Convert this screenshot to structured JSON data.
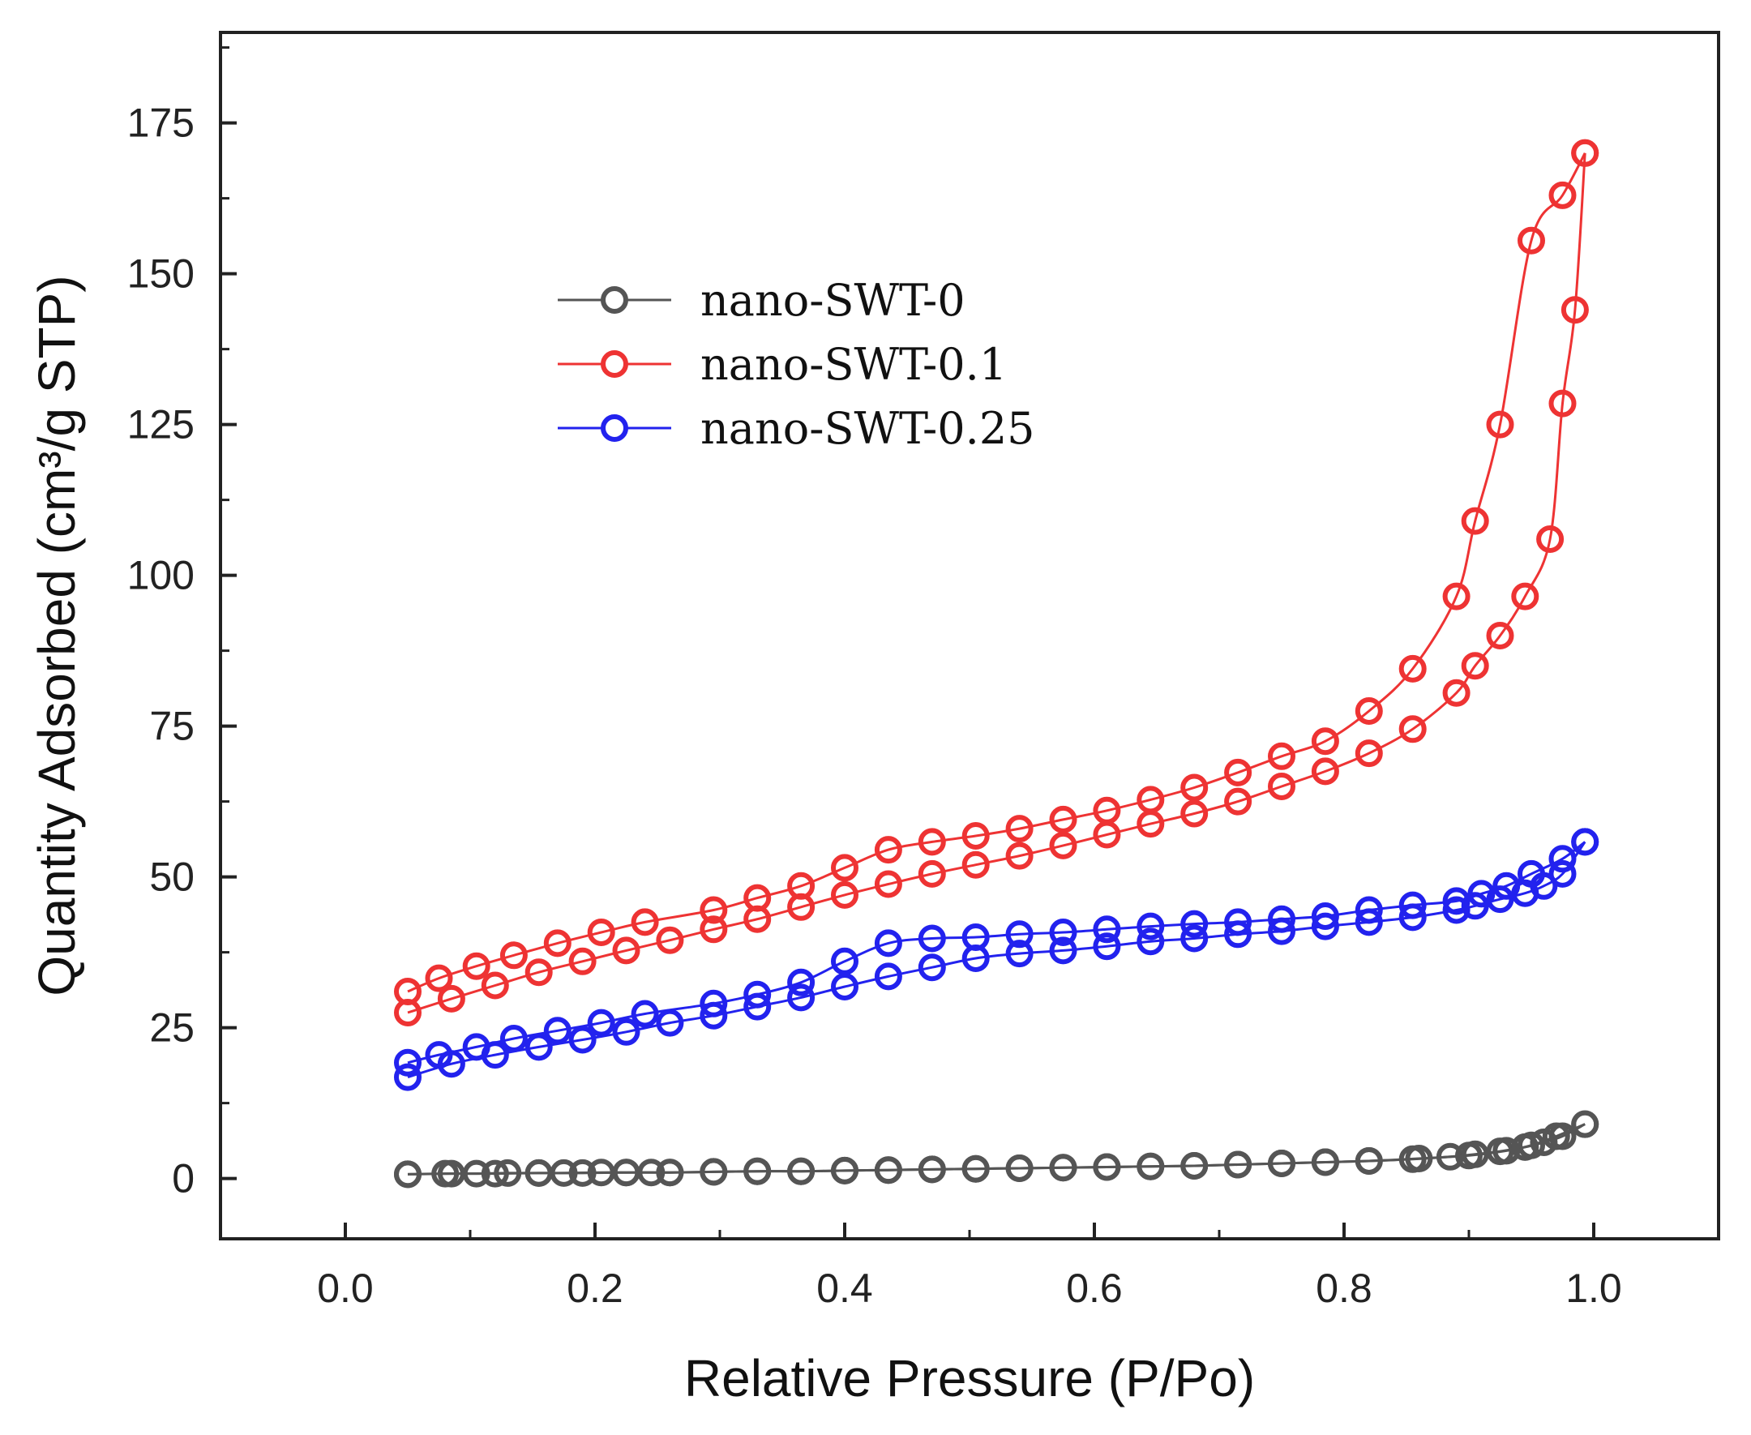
{
  "chart_data": {
    "type": "scatter",
    "title": "",
    "xlabel": "Relative Pressure (P/Po)",
    "ylabel": "Quantity Adsorbed (cm³/g STP)",
    "xlim": [
      -0.1,
      1.1
    ],
    "ylim": [
      -10,
      190
    ],
    "xticks": [
      0.0,
      0.2,
      0.4,
      0.6,
      0.8,
      1.0
    ],
    "xtick_labels": [
      "0.0",
      "0.2",
      "0.4",
      "0.6",
      "0.8",
      "1.0"
    ],
    "yticks": [
      0,
      25,
      50,
      75,
      100,
      125,
      150,
      175
    ],
    "ytick_labels": [
      "0",
      "25",
      "50",
      "75",
      "100",
      "125",
      "150",
      "175"
    ],
    "grid": false,
    "legend_position": "upper-left",
    "marker": "open-circle",
    "series": [
      {
        "name": "nano-SWT-0",
        "color": "#555555",
        "adsorption": {
          "x": [
            0.05,
            0.08,
            0.105,
            0.13,
            0.155,
            0.175,
            0.205,
            0.225,
            0.245,
            0.26,
            0.295,
            0.33,
            0.365,
            0.4,
            0.435,
            0.47,
            0.505,
            0.54,
            0.575,
            0.61,
            0.645,
            0.68,
            0.715,
            0.75,
            0.785,
            0.82,
            0.855,
            0.885,
            0.905,
            0.925,
            0.945,
            0.96,
            0.975,
            0.993
          ],
          "y": [
            0.7,
            0.8,
            0.8,
            0.9,
            0.9,
            0.9,
            1.0,
            1.0,
            1.0,
            1.0,
            1.1,
            1.2,
            1.2,
            1.3,
            1.4,
            1.5,
            1.6,
            1.7,
            1.8,
            1.9,
            2.0,
            2.1,
            2.3,
            2.5,
            2.7,
            2.9,
            3.2,
            3.6,
            4.0,
            4.5,
            5.2,
            6.0,
            7.0,
            9.0
          ]
        },
        "desorption": {
          "x": [
            0.993,
            0.97,
            0.95,
            0.93,
            0.9,
            0.86,
            0.82,
            0.785,
            0.75,
            0.715,
            0.68,
            0.645,
            0.61,
            0.575,
            0.54,
            0.505,
            0.47,
            0.435,
            0.4,
            0.365,
            0.33,
            0.295,
            0.26,
            0.225,
            0.19,
            0.155,
            0.12,
            0.085,
            0.05
          ],
          "y": [
            9.0,
            7.0,
            5.5,
            4.6,
            3.8,
            3.3,
            2.9,
            2.7,
            2.5,
            2.3,
            2.1,
            2.0,
            1.9,
            1.8,
            1.7,
            1.6,
            1.5,
            1.4,
            1.3,
            1.2,
            1.2,
            1.1,
            1.0,
            1.0,
            0.9,
            0.9,
            0.8,
            0.8,
            0.7
          ]
        }
      },
      {
        "name": "nano-SWT-0.1",
        "color": "#ee3333",
        "adsorption": {
          "x": [
            0.05,
            0.085,
            0.12,
            0.155,
            0.19,
            0.225,
            0.26,
            0.295,
            0.33,
            0.365,
            0.4,
            0.435,
            0.47,
            0.505,
            0.54,
            0.575,
            0.61,
            0.645,
            0.68,
            0.715,
            0.75,
            0.785,
            0.82,
            0.855,
            0.89,
            0.905,
            0.925,
            0.945,
            0.965,
            0.975,
            0.985,
            0.993
          ],
          "y": [
            27.5,
            29.8,
            32.0,
            34.2,
            36.0,
            37.8,
            39.5,
            41.3,
            43.0,
            45.0,
            47.0,
            48.8,
            50.5,
            52.0,
            53.5,
            55.2,
            57.0,
            58.8,
            60.5,
            62.5,
            65.0,
            67.5,
            70.5,
            74.5,
            80.5,
            85.0,
            90.0,
            96.5,
            106.0,
            128.5,
            144.0,
            170.0
          ]
        },
        "desorption": {
          "x": [
            0.993,
            0.975,
            0.95,
            0.925,
            0.905,
            0.89,
            0.855,
            0.82,
            0.785,
            0.75,
            0.715,
            0.68,
            0.645,
            0.61,
            0.575,
            0.54,
            0.505,
            0.47,
            0.435,
            0.4,
            0.365,
            0.33,
            0.295,
            0.24,
            0.205,
            0.17,
            0.135,
            0.105,
            0.075,
            0.05
          ],
          "y": [
            170.0,
            163.0,
            155.5,
            125.0,
            109.0,
            96.5,
            84.5,
            77.5,
            72.5,
            70.0,
            67.3,
            64.8,
            62.8,
            61.0,
            59.5,
            58.0,
            56.8,
            55.8,
            54.5,
            51.5,
            48.5,
            46.5,
            44.5,
            42.5,
            40.8,
            39.0,
            37.0,
            35.2,
            33.2,
            31.0
          ]
        }
      },
      {
        "name": "nano-SWT-0.25",
        "color": "#2222ee",
        "adsorption": {
          "x": [
            0.05,
            0.085,
            0.12,
            0.155,
            0.19,
            0.225,
            0.26,
            0.295,
            0.33,
            0.365,
            0.4,
            0.435,
            0.47,
            0.505,
            0.54,
            0.575,
            0.61,
            0.645,
            0.68,
            0.715,
            0.75,
            0.785,
            0.82,
            0.855,
            0.89,
            0.905,
            0.925,
            0.945,
            0.96,
            0.975,
            0.993
          ],
          "y": [
            16.8,
            19.0,
            20.5,
            21.8,
            23.0,
            24.3,
            25.8,
            27.0,
            28.5,
            30.0,
            31.8,
            33.5,
            35.0,
            36.5,
            37.3,
            37.8,
            38.5,
            39.3,
            39.8,
            40.5,
            41.0,
            41.8,
            42.5,
            43.3,
            44.5,
            45.2,
            46.3,
            47.3,
            48.5,
            50.5,
            55.8
          ]
        },
        "desorption": {
          "x": [
            0.993,
            0.975,
            0.95,
            0.93,
            0.91,
            0.89,
            0.855,
            0.82,
            0.785,
            0.75,
            0.715,
            0.68,
            0.645,
            0.61,
            0.575,
            0.54,
            0.505,
            0.47,
            0.435,
            0.4,
            0.365,
            0.33,
            0.295,
            0.24,
            0.205,
            0.17,
            0.135,
            0.105,
            0.075,
            0.05
          ],
          "y": [
            55.8,
            53.0,
            50.5,
            48.5,
            47.2,
            46.0,
            45.3,
            44.5,
            43.5,
            43.0,
            42.5,
            42.2,
            41.8,
            41.3,
            40.8,
            40.5,
            40.0,
            39.8,
            39.0,
            36.0,
            32.5,
            30.5,
            29.0,
            27.3,
            25.8,
            24.5,
            23.2,
            21.8,
            20.5,
            19.2
          ]
        }
      }
    ]
  }
}
